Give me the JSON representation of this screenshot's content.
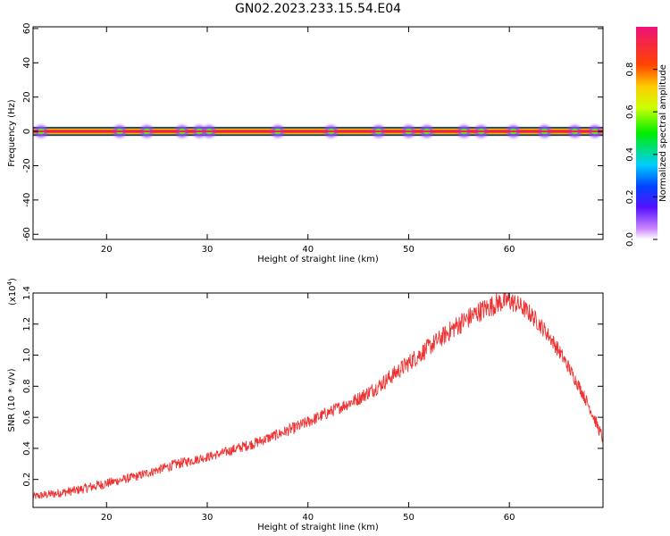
{
  "title": "GN02.2023.233.15.54.E04",
  "colors": {
    "snr_line": "#ee3333",
    "background": "#ffffff",
    "axes": "#000000"
  },
  "chart_data": [
    {
      "type": "heatmap",
      "xlabel": "Height of straight line (km)",
      "ylabel": "Frequency (Hz)",
      "xlim": [
        12.7,
        69.3
      ],
      "ylim": [
        -63,
        61
      ],
      "x_ticks": [
        20,
        30,
        40,
        50,
        60
      ],
      "y_ticks": [
        -60,
        -40,
        -20,
        0,
        20,
        40,
        60
      ],
      "band": {
        "frequency_hz": 0,
        "half_width_hz": 2,
        "peak_amplitude": 1.0
      },
      "hotspots_km": [
        13.5,
        21.3,
        24.0,
        27.5,
        29.2,
        30.2,
        37.0,
        42.3,
        47.0,
        50.0,
        51.8,
        55.5,
        57.2,
        60.4,
        63.5,
        66.5,
        68.5
      ],
      "colorbar": {
        "label": "Normalized spectral amplitude",
        "range": [
          0,
          1
        ],
        "ticks": [
          0.0,
          0.2,
          0.4,
          0.6,
          0.8
        ],
        "stops": [
          {
            "v": 0.0,
            "color": "#ffffff"
          },
          {
            "v": 0.05,
            "color": "#cc88ff"
          },
          {
            "v": 0.15,
            "color": "#5511ff"
          },
          {
            "v": 0.25,
            "color": "#0044ff"
          },
          {
            "v": 0.35,
            "color": "#00ccff"
          },
          {
            "v": 0.5,
            "color": "#00ee00"
          },
          {
            "v": 0.62,
            "color": "#ccff00"
          },
          {
            "v": 0.72,
            "color": "#ffcc00"
          },
          {
            "v": 0.82,
            "color": "#ff4400"
          },
          {
            "v": 1.0,
            "color": "#ee1177"
          }
        ]
      }
    },
    {
      "type": "line",
      "xlabel": "Height of straight line (km)",
      "ylabel": "SNR (10 * v/v)",
      "y_multiplier_label": "(x10",
      "y_multiplier_exp": "4",
      "y_multiplier_close": ")",
      "xlim": [
        12.7,
        69.3
      ],
      "ylim": [
        0.02,
        1.4
      ],
      "x_ticks": [
        20,
        30,
        40,
        50,
        60
      ],
      "y_ticks": [
        0.2,
        0.4,
        0.6,
        0.8,
        1.0,
        1.2,
        1.4
      ],
      "series": [
        {
          "x": [
            12.7,
            15,
            17,
            19,
            21,
            23,
            25,
            27,
            29,
            31,
            33,
            35,
            37,
            39,
            41,
            43,
            45,
            47,
            49,
            51,
            53,
            55,
            57,
            58,
            59,
            60,
            61,
            62,
            63,
            64,
            65,
            66,
            67,
            68,
            69.3
          ],
          "y": [
            0.09,
            0.11,
            0.13,
            0.16,
            0.19,
            0.22,
            0.26,
            0.3,
            0.33,
            0.36,
            0.4,
            0.44,
            0.49,
            0.54,
            0.6,
            0.66,
            0.72,
            0.8,
            0.9,
            1.0,
            1.1,
            1.2,
            1.28,
            1.31,
            1.34,
            1.35,
            1.32,
            1.27,
            1.2,
            1.12,
            1.02,
            0.91,
            0.79,
            0.66,
            0.46
          ],
          "noise": [
            0.025,
            0.03,
            0.03,
            0.035,
            0.03,
            0.03,
            0.03,
            0.035,
            0.03,
            0.03,
            0.035,
            0.035,
            0.035,
            0.04,
            0.04,
            0.04,
            0.045,
            0.05,
            0.055,
            0.06,
            0.06,
            0.07,
            0.07,
            0.07,
            0.07,
            0.07,
            0.06,
            0.06,
            0.055,
            0.05,
            0.05,
            0.045,
            0.04,
            0.04,
            0.04
          ]
        }
      ]
    }
  ]
}
